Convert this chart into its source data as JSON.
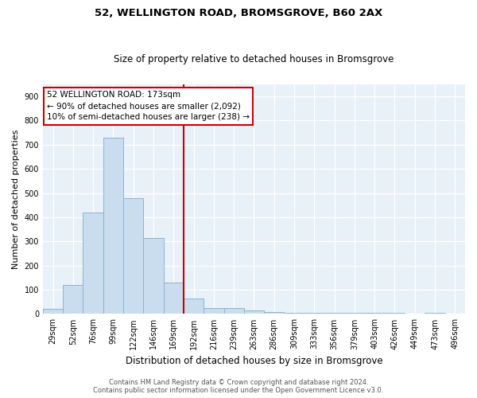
{
  "title": "52, WELLINGTON ROAD, BROMSGROVE, B60 2AX",
  "subtitle": "Size of property relative to detached houses in Bromsgrove",
  "xlabel": "Distribution of detached houses by size in Bromsgrove",
  "ylabel": "Number of detached properties",
  "bar_color": "#c9ddef",
  "bar_edge_color": "#8ab4d4",
  "background_color": "#e8f0f8",
  "grid_color": "#ffffff",
  "categories": [
    "29sqm",
    "52sqm",
    "76sqm",
    "99sqm",
    "122sqm",
    "146sqm",
    "169sqm",
    "192sqm",
    "216sqm",
    "239sqm",
    "263sqm",
    "286sqm",
    "309sqm",
    "333sqm",
    "356sqm",
    "379sqm",
    "403sqm",
    "426sqm",
    "449sqm",
    "473sqm",
    "496sqm"
  ],
  "values": [
    20,
    120,
    420,
    730,
    480,
    315,
    130,
    65,
    25,
    25,
    15,
    8,
    5,
    5,
    5,
    4,
    4,
    4,
    0,
    5,
    0
  ],
  "property_bin_index": 6,
  "annotation_title": "52 WELLINGTON ROAD: 173sqm",
  "annotation_line1": "← 90% of detached houses are smaller (2,092)",
  "annotation_line2": "10% of semi-detached houses are larger (238) →",
  "vline_color": "#cc0000",
  "annotation_box_facecolor": "#ffffff",
  "annotation_box_edgecolor": "#cc0000",
  "footer_line1": "Contains HM Land Registry data © Crown copyright and database right 2024.",
  "footer_line2": "Contains public sector information licensed under the Open Government Licence v3.0.",
  "ylim": [
    0,
    950
  ],
  "yticks": [
    0,
    100,
    200,
    300,
    400,
    500,
    600,
    700,
    800,
    900
  ],
  "fig_facecolor": "#ffffff",
  "title_fontsize": 9.5,
  "subtitle_fontsize": 8.5,
  "xlabel_fontsize": 8.5,
  "ylabel_fontsize": 8,
  "tick_fontsize": 7,
  "annotation_fontsize": 7.5,
  "footer_fontsize": 6
}
